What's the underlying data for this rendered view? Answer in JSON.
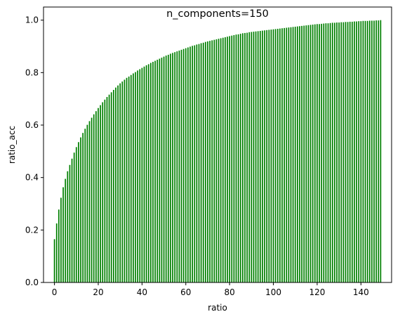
{
  "chart_data": {
    "type": "bar",
    "title": "n_components=150",
    "xlabel": "ratio",
    "ylabel": "ratio_acc",
    "xlim": [
      -5,
      154
    ],
    "ylim": [
      0,
      1.05
    ],
    "xticks": [
      "0",
      "20",
      "40",
      "60",
      "80",
      "100",
      "120",
      "140"
    ],
    "yticks": [
      "0.0",
      "0.2",
      "0.4",
      "0.6",
      "0.8",
      "1.0"
    ],
    "bar_color": "#008000",
    "grid": false,
    "legend": "none",
    "x": [
      0,
      1,
      2,
      3,
      4,
      5,
      6,
      7,
      8,
      9,
      10,
      11,
      12,
      13,
      14,
      15,
      16,
      17,
      18,
      19,
      20,
      21,
      22,
      23,
      24,
      25,
      26,
      27,
      28,
      29,
      30,
      31,
      32,
      33,
      34,
      35,
      36,
      37,
      38,
      39,
      40,
      41,
      42,
      43,
      44,
      45,
      46,
      47,
      48,
      49,
      50,
      51,
      52,
      53,
      54,
      55,
      56,
      57,
      58,
      59,
      60,
      61,
      62,
      63,
      64,
      65,
      66,
      67,
      68,
      69,
      70,
      71,
      72,
      73,
      74,
      75,
      76,
      77,
      78,
      79,
      80,
      81,
      82,
      83,
      84,
      85,
      86,
      87,
      88,
      89,
      90,
      91,
      92,
      93,
      94,
      95,
      96,
      97,
      98,
      99,
      100,
      101,
      102,
      103,
      104,
      105,
      106,
      107,
      108,
      109,
      110,
      111,
      112,
      113,
      114,
      115,
      116,
      117,
      118,
      119,
      120,
      121,
      122,
      123,
      124,
      125,
      126,
      127,
      128,
      129,
      130,
      131,
      132,
      133,
      134,
      135,
      136,
      137,
      138,
      139,
      140,
      141,
      142,
      143,
      144,
      145,
      146,
      147,
      148,
      149
    ],
    "values": [
      0.165,
      0.225,
      0.278,
      0.323,
      0.363,
      0.395,
      0.424,
      0.448,
      0.472,
      0.495,
      0.516,
      0.535,
      0.553,
      0.57,
      0.586,
      0.601,
      0.615,
      0.628,
      0.641,
      0.653,
      0.665,
      0.676,
      0.687,
      0.697,
      0.707,
      0.716,
      0.725,
      0.734,
      0.743,
      0.751,
      0.759,
      0.766,
      0.773,
      0.78,
      0.785,
      0.791,
      0.797,
      0.802,
      0.808,
      0.813,
      0.818,
      0.823,
      0.828,
      0.832,
      0.837,
      0.841,
      0.845,
      0.849,
      0.853,
      0.857,
      0.861,
      0.865,
      0.868,
      0.872,
      0.875,
      0.878,
      0.881,
      0.884,
      0.887,
      0.89,
      0.893,
      0.896,
      0.899,
      0.902,
      0.904,
      0.907,
      0.909,
      0.912,
      0.914,
      0.917,
      0.919,
      0.921,
      0.923,
      0.925,
      0.927,
      0.929,
      0.931,
      0.933,
      0.935,
      0.937,
      0.939,
      0.941,
      0.943,
      0.945,
      0.946,
      0.948,
      0.95,
      0.951,
      0.952,
      0.954,
      0.955,
      0.956,
      0.957,
      0.958,
      0.959,
      0.96,
      0.961,
      0.962,
      0.963,
      0.964,
      0.965,
      0.966,
      0.967,
      0.968,
      0.969,
      0.97,
      0.971,
      0.972,
      0.973,
      0.974,
      0.975,
      0.976,
      0.977,
      0.978,
      0.979,
      0.98,
      0.981,
      0.982,
      0.983,
      0.984,
      0.985,
      0.985,
      0.986,
      0.987,
      0.988,
      0.988,
      0.989,
      0.99,
      0.99,
      0.991,
      0.991,
      0.992,
      0.992,
      0.993,
      0.993,
      0.994,
      0.994,
      0.995,
      0.995,
      0.996,
      0.996,
      0.997,
      0.997,
      0.997,
      0.998,
      0.998,
      0.998,
      0.999,
      0.999,
      1.0
    ]
  }
}
